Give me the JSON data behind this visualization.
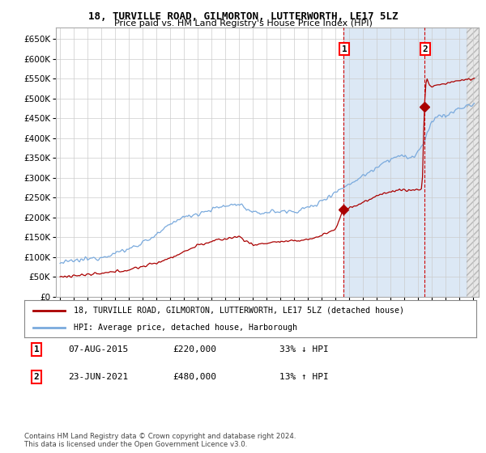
{
  "title": "18, TURVILLE ROAD, GILMORTON, LUTTERWORTH, LE17 5LZ",
  "subtitle": "Price paid vs. HM Land Registry's House Price Index (HPI)",
  "footnote": "Contains HM Land Registry data © Crown copyright and database right 2024.\nThis data is licensed under the Open Government Licence v3.0.",
  "legend_house": "18, TURVILLE ROAD, GILMORTON, LUTTERWORTH, LE17 5LZ (detached house)",
  "legend_hpi": "HPI: Average price, detached house, Harborough",
  "transaction1_date": "07-AUG-2015",
  "transaction1_price": 220000,
  "transaction1_note": "33% ↓ HPI",
  "transaction2_date": "23-JUN-2021",
  "transaction2_price": 480000,
  "transaction2_note": "13% ↑ HPI",
  "house_color": "#aa0000",
  "hpi_color": "#7aaadd",
  "highlight_color": "#dce8f5",
  "hatch_color": "#cccccc",
  "grid_color": "#cccccc",
  "background_color": "#ffffff",
  "ylim": [
    0,
    680000
  ],
  "xlim_left": 1994.7,
  "xlim_right": 2025.4,
  "t1_year": 2015.6,
  "t2_year": 2021.45,
  "hatch_start": 2024.5,
  "yticks": [
    0,
    50000,
    100000,
    150000,
    200000,
    250000,
    300000,
    350000,
    400000,
    450000,
    500000,
    550000,
    600000,
    650000
  ]
}
